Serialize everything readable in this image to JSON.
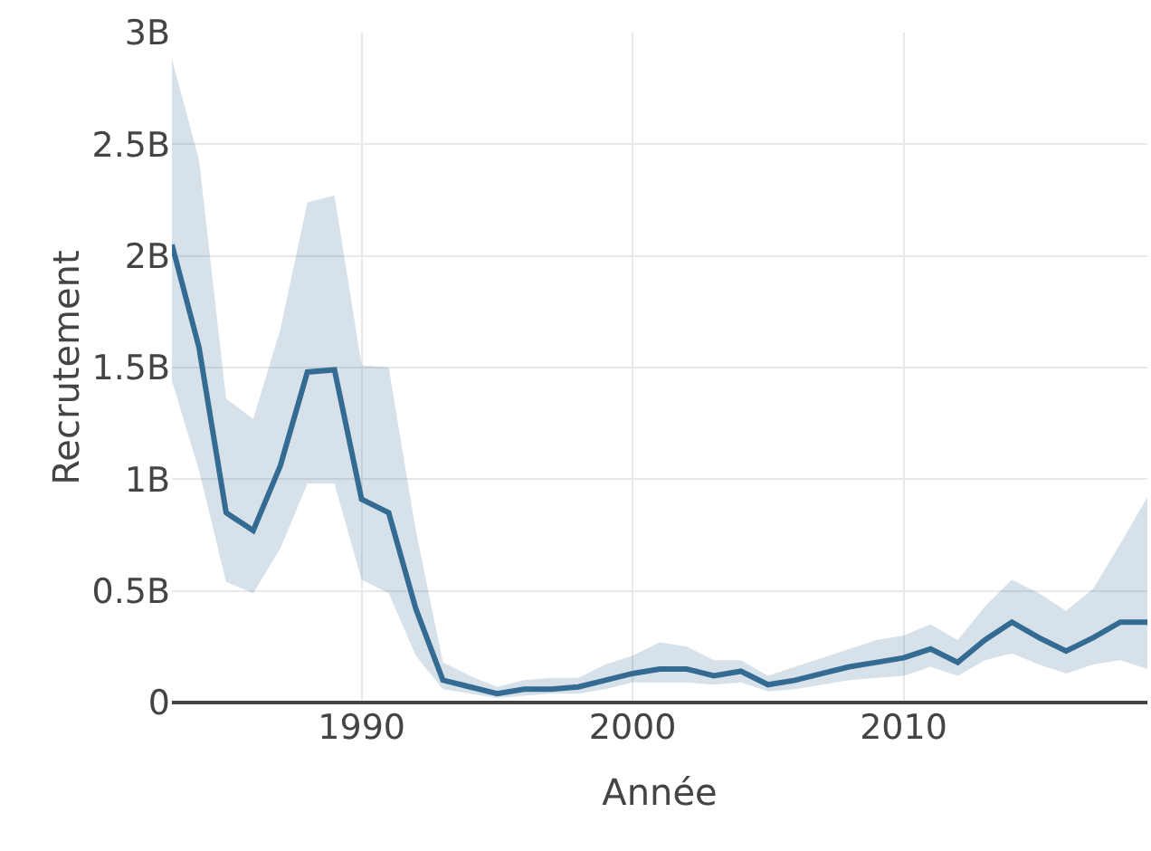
{
  "chart_data": {
    "type": "line",
    "xlabel": "Année",
    "ylabel": "Recrutement",
    "x": [
      1983,
      1984,
      1985,
      1986,
      1987,
      1988,
      1989,
      1990,
      1991,
      1992,
      1993,
      1994,
      1995,
      1996,
      1997,
      1998,
      1999,
      2000,
      2001,
      2002,
      2003,
      2004,
      2005,
      2006,
      2007,
      2008,
      2009,
      2010,
      2011,
      2012,
      2013,
      2014,
      2015,
      2016,
      2017,
      2018,
      2019
    ],
    "series": [
      {
        "color": "#336b93",
        "values": [
          2.05,
          1.59,
          0.85,
          0.77,
          1.06,
          1.48,
          1.49,
          0.91,
          0.85,
          0.42,
          0.1,
          0.07,
          0.04,
          0.06,
          0.06,
          0.07,
          0.1,
          0.13,
          0.15,
          0.15,
          0.12,
          0.14,
          0.08,
          0.1,
          0.13,
          0.16,
          0.18,
          0.2,
          0.24,
          0.18,
          0.28,
          0.36,
          0.29,
          0.23,
          0.29,
          0.36,
          0.36
        ],
        "lower": [
          1.44,
          1.04,
          0.54,
          0.49,
          0.69,
          0.98,
          0.98,
          0.55,
          0.49,
          0.21,
          0.06,
          0.04,
          0.02,
          0.03,
          0.04,
          0.04,
          0.06,
          0.09,
          0.09,
          0.09,
          0.08,
          0.09,
          0.05,
          0.06,
          0.08,
          0.1,
          0.11,
          0.12,
          0.16,
          0.12,
          0.19,
          0.22,
          0.17,
          0.13,
          0.17,
          0.19,
          0.15
        ],
        "upper": [
          2.88,
          2.43,
          1.36,
          1.27,
          1.67,
          2.24,
          2.27,
          1.51,
          1.5,
          0.77,
          0.18,
          0.12,
          0.07,
          0.1,
          0.11,
          0.11,
          0.17,
          0.21,
          0.27,
          0.25,
          0.19,
          0.19,
          0.12,
          0.16,
          0.2,
          0.24,
          0.28,
          0.3,
          0.35,
          0.28,
          0.43,
          0.55,
          0.49,
          0.41,
          0.51,
          0.71,
          0.92
        ]
      }
    ],
    "xlim": [
      1983,
      2019
    ],
    "xticks": [
      1990,
      2000,
      2010
    ],
    "ylim": [
      0,
      3
    ],
    "yticks": [
      {
        "value": 0,
        "label": "0"
      },
      {
        "value": 0.5,
        "label": "0.5B"
      },
      {
        "value": 1,
        "label": "1B"
      },
      {
        "value": 1.5,
        "label": "1.5B"
      },
      {
        "value": 2,
        "label": "2B"
      },
      {
        "value": 2.5,
        "label": "2.5B"
      },
      {
        "value": 3,
        "label": "3B"
      }
    ],
    "grid": true,
    "marker": "none",
    "line_style": "solid"
  }
}
